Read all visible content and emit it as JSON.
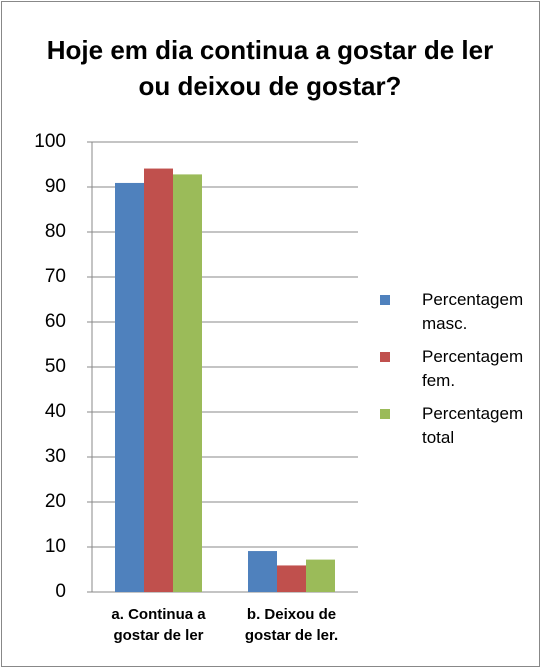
{
  "chart_data": {
    "type": "bar",
    "title": "Hoje em dia continua a gostar de ler ou deixou de gostar?",
    "categories": [
      "a. Continua a gostar de ler",
      "b. Deixou de gostar de ler."
    ],
    "series": [
      {
        "name": "Percentagem masc.",
        "color": "#4f81bd",
        "values": [
          90.9,
          9.1
        ]
      },
      {
        "name": "Percentagem fem.",
        "color": "#c0504d",
        "values": [
          94.1,
          5.9
        ]
      },
      {
        "name": "Percentagem total",
        "color": "#9bbb59",
        "values": [
          92.8,
          7.2
        ]
      }
    ],
    "ylim": [
      0,
      100
    ],
    "yticks": [
      0,
      10,
      20,
      30,
      40,
      50,
      60,
      70,
      80,
      90,
      100
    ],
    "grid": true,
    "legend": "right"
  }
}
